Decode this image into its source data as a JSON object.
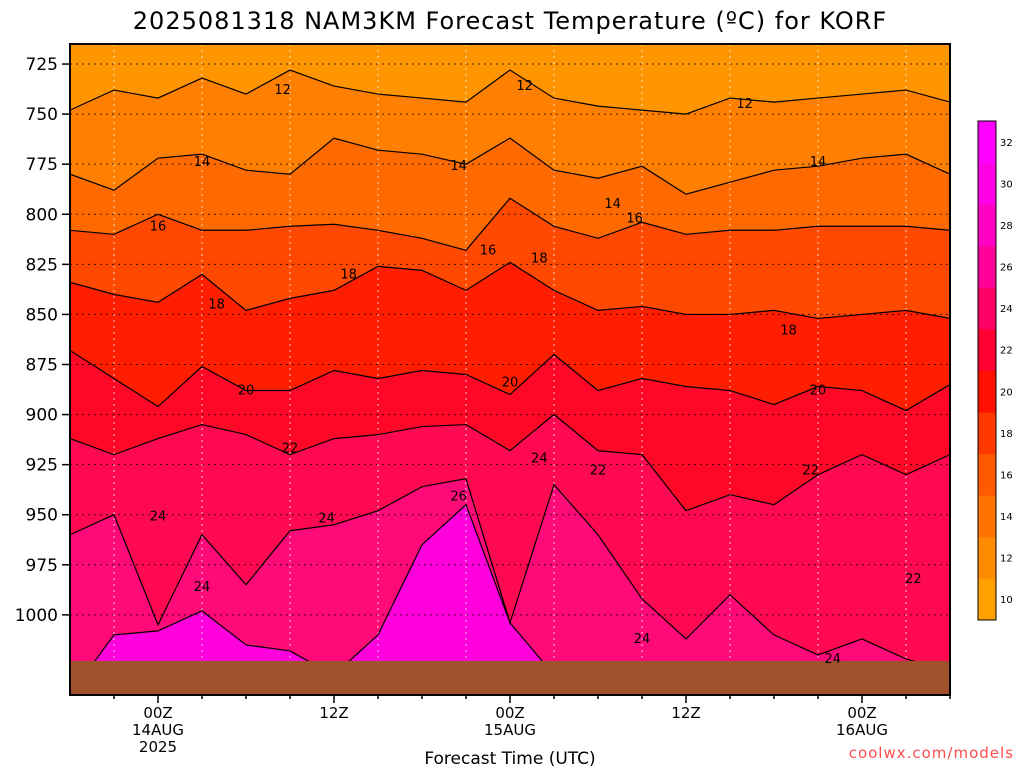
{
  "chart_data": {
    "type": "heatmap",
    "title": "2025081318 NAM3KM Forecast Temperature (ºC) for KORF",
    "xlabel": "Forecast Time (UTC)",
    "ylabel": "",
    "y_inverted": true,
    "ylim": [
      1040,
      715
    ],
    "xlim": [
      -6,
      54
    ],
    "grid": "dotted",
    "y_ticks": [
      {
        "value": 725,
        "label": "725"
      },
      {
        "value": 750,
        "label": "750"
      },
      {
        "value": 775,
        "label": "775"
      },
      {
        "value": 800,
        "label": "800"
      },
      {
        "value": 825,
        "label": "825"
      },
      {
        "value": 850,
        "label": "850"
      },
      {
        "value": 875,
        "label": "875"
      },
      {
        "value": 900,
        "label": "900"
      },
      {
        "value": 925,
        "label": "925"
      },
      {
        "value": 950,
        "label": "950"
      },
      {
        "value": 975,
        "label": "975"
      },
      {
        "value": 1000,
        "label": "1000"
      }
    ],
    "x_ticks": [
      {
        "hours": 0,
        "label": [
          "00Z",
          "14AUG",
          "2025"
        ]
      },
      {
        "hours": 12,
        "label": [
          "12Z"
        ]
      },
      {
        "hours": 24,
        "label": [
          "00Z",
          "15AUG"
        ]
      },
      {
        "hours": 36,
        "label": [
          "12Z"
        ]
      },
      {
        "hours": 48,
        "label": [
          "00Z",
          "16AUG"
        ]
      }
    ],
    "contour_levels": [
      12,
      14,
      16,
      18,
      20,
      22,
      24,
      26
    ],
    "contour_times": [
      -6,
      -3,
      0,
      3,
      6,
      9,
      12,
      15,
      18,
      21,
      24,
      27,
      30,
      33,
      36,
      39,
      42,
      45,
      48,
      51,
      54
    ],
    "contour_pressure": [
      {
        "level": 12,
        "p": [
          748,
          738,
          742,
          732,
          740,
          728,
          736,
          740,
          742,
          744,
          728,
          742,
          746,
          748,
          750,
          742,
          744,
          742,
          740,
          738,
          744
        ]
      },
      {
        "level": 14,
        "p": [
          780,
          788,
          772,
          770,
          778,
          780,
          762,
          768,
          770,
          775,
          762,
          778,
          782,
          776,
          790,
          784,
          778,
          776,
          772,
          770,
          780
        ]
      },
      {
        "level": 16,
        "p": [
          808,
          810,
          800,
          808,
          808,
          806,
          805,
          808,
          812,
          818,
          792,
          806,
          812,
          804,
          810,
          808,
          808,
          806,
          806,
          806,
          808
        ]
      },
      {
        "level": 18,
        "p": [
          834,
          840,
          844,
          830,
          848,
          842,
          838,
          826,
          828,
          838,
          824,
          838,
          848,
          846,
          850,
          850,
          848,
          852,
          850,
          848,
          852
        ]
      },
      {
        "level": 20,
        "p": [
          868,
          882,
          896,
          876,
          888,
          888,
          878,
          882,
          878,
          880,
          890,
          870,
          888,
          882,
          886,
          888,
          895,
          886,
          888,
          898,
          885
        ]
      },
      {
        "level": 22,
        "p": [
          912,
          920,
          912,
          905,
          910,
          920,
          912,
          910,
          906,
          905,
          918,
          900,
          918,
          920,
          948,
          940,
          945,
          930,
          920,
          930,
          920
        ]
      },
      {
        "level": 24,
        "p": [
          960,
          950,
          1005,
          960,
          985,
          958,
          955,
          948,
          936,
          932,
          1004,
          935,
          960,
          992,
          1012,
          990,
          1010,
          1020,
          1012,
          1022,
          1028
        ]
      },
      {
        "level": 26,
        "p": [
          1040,
          1010,
          1008,
          998,
          1015,
          1018,
          1030,
          1010,
          965,
          945,
          1004,
          1030,
          1038,
          1040,
          1040,
          1040,
          1040,
          1040,
          1040,
          1040,
          1040
        ]
      }
    ],
    "contour_labels": [
      {
        "text": "12",
        "t": 8.5,
        "p": 738
      },
      {
        "text": "12",
        "t": 25,
        "p": 736
      },
      {
        "text": "12",
        "t": 40,
        "p": 745
      },
      {
        "text": "14",
        "t": 3,
        "p": 774
      },
      {
        "text": "14",
        "t": 20.5,
        "p": 776
      },
      {
        "text": "14",
        "t": 31,
        "p": 795
      },
      {
        "text": "14",
        "t": 45,
        "p": 774
      },
      {
        "text": "16",
        "t": 0,
        "p": 806
      },
      {
        "text": "16",
        "t": 32.5,
        "p": 802
      },
      {
        "text": "16",
        "t": 22.5,
        "p": 818
      },
      {
        "text": "18",
        "t": 26,
        "p": 822
      },
      {
        "text": "18",
        "t": 13,
        "p": 830
      },
      {
        "text": "18",
        "t": 4,
        "p": 845
      },
      {
        "text": "18",
        "t": 43,
        "p": 858
      },
      {
        "text": "20",
        "t": 6,
        "p": 888
      },
      {
        "text": "20",
        "t": 24,
        "p": 884
      },
      {
        "text": "20",
        "t": 45,
        "p": 888
      },
      {
        "text": "22",
        "t": 9,
        "p": 917
      },
      {
        "text": "22",
        "t": 30,
        "p": 928
      },
      {
        "text": "22",
        "t": 44.5,
        "p": 928
      },
      {
        "text": "22",
        "t": 51.5,
        "p": 982
      },
      {
        "text": "24",
        "t": 0,
        "p": 951
      },
      {
        "text": "24",
        "t": 11.5,
        "p": 952
      },
      {
        "text": "24",
        "t": 26,
        "p": 922
      },
      {
        "text": "24",
        "t": 3,
        "p": 986
      },
      {
        "text": "24",
        "t": 33,
        "p": 1012
      },
      {
        "text": "24",
        "t": 46,
        "p": 1022
      },
      {
        "text": "26",
        "t": 20.5,
        "p": 941
      }
    ],
    "terrain_surface_pressure": 1023,
    "terrain_color": "#a0522d",
    "colorbar": {
      "values": [
        10,
        12,
        14,
        16,
        18,
        20,
        22,
        24,
        26,
        28,
        30,
        32
      ],
      "colors": [
        "#ff9f00",
        "#ff8c00",
        "#ff7400",
        "#ff5a00",
        "#ff3800",
        "#ff1000",
        "#ff0033",
        "#ff0066",
        "#ff0099",
        "#ff00c4",
        "#ff00e6",
        "#ff00ff"
      ]
    },
    "band_colors": [
      {
        "below": 12,
        "color": "#ff9500"
      },
      {
        "below": 14,
        "color": "#ff8000"
      },
      {
        "below": 16,
        "color": "#ff6a00"
      },
      {
        "below": 18,
        "color": "#ff4800"
      },
      {
        "below": 20,
        "color": "#ff1e00"
      },
      {
        "below": 22,
        "color": "#ff0828"
      },
      {
        "below": 24,
        "color": "#ff0a52"
      },
      {
        "below": 26,
        "color": "#ff0a78"
      },
      {
        "below": 99,
        "color": "#ff00dc"
      }
    ]
  },
  "credit": "coolwx.com/models"
}
